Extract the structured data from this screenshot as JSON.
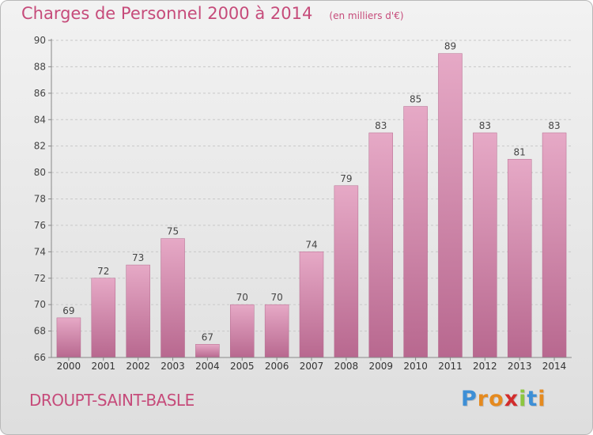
{
  "chart_data": {
    "type": "bar",
    "title": "Charges de Personnel 2000 à 2014",
    "unit": "(en milliers d'€)",
    "categories": [
      "2000",
      "2001",
      "2002",
      "2003",
      "2004",
      "2005",
      "2006",
      "2007",
      "2008",
      "2009",
      "2010",
      "2011",
      "2012",
      "2013",
      "2014"
    ],
    "values": [
      69,
      72,
      73,
      75,
      67,
      70,
      70,
      74,
      79,
      83,
      85,
      89,
      83,
      81,
      83
    ],
    "ylim": [
      66,
      90
    ],
    "yticks": [
      66,
      68,
      70,
      72,
      74,
      76,
      78,
      80,
      82,
      84,
      86,
      88,
      90
    ],
    "grid": true,
    "bar_color": "#d98aac",
    "text_color": "#c64b7a"
  },
  "commune": "DROUPT-SAINT-BASLE",
  "logo": {
    "text": "Proxiti",
    "letter_colors": [
      "#3d8fd6",
      "#e58a1f",
      "#e58a1f",
      "#d22c2c",
      "#8cc63f",
      "#3d8fd6",
      "#e58a1f"
    ]
  }
}
